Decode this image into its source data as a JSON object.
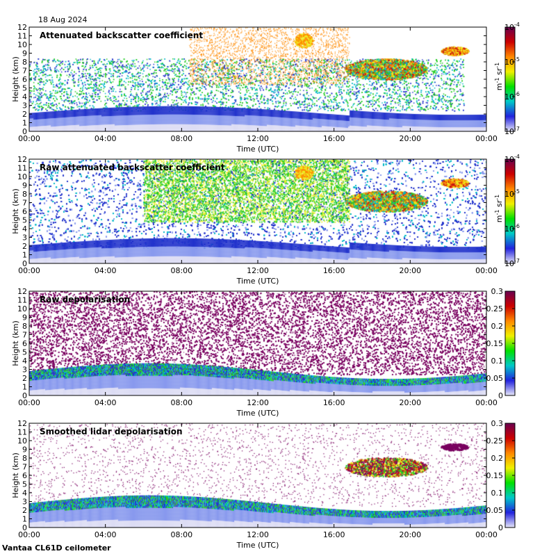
{
  "date": "18 Aug 2024",
  "footer": "Vantaa CL61D ceilometer",
  "chart_data": [
    {
      "type": "heatmap",
      "title": "Attenuated backscatter coefficient",
      "xlabel": "Time (UTC)",
      "ylabel": "Height (km)",
      "x_ticks": [
        "00:00",
        "04:00",
        "08:00",
        "12:00",
        "16:00",
        "20:00",
        "00:00"
      ],
      "y_ticks": [
        "0",
        "1",
        "2",
        "3",
        "4",
        "5",
        "6",
        "7",
        "8",
        "9",
        "10",
        "11",
        "12"
      ],
      "xlim": [
        "00:00",
        "24:00"
      ],
      "ylim": [
        0,
        12
      ],
      "colorbar": {
        "scale": "log",
        "range": [
          1e-07,
          0.0001
        ],
        "tick_bases": [
          "10",
          "10",
          "10",
          "10"
        ],
        "tick_exponents": [
          "-7",
          "-6",
          "-5",
          "-4"
        ],
        "unit_parts": [
          "m",
          "-1",
          " sr",
          "-1"
        ],
        "palette": [
          "#e8e8f8",
          "#2222dd",
          "#00c8c8",
          "#00e000",
          "#f0f000",
          "#ff8800",
          "#cc0000",
          "#6a0050"
        ]
      }
    },
    {
      "type": "heatmap",
      "title": "Raw attenuated backscatter coefficient",
      "xlabel": "Time (UTC)",
      "ylabel": "Height (km)",
      "x_ticks": [
        "00:00",
        "04:00",
        "08:00",
        "12:00",
        "16:00",
        "20:00",
        "00:00"
      ],
      "y_ticks": [
        "0",
        "1",
        "2",
        "3",
        "4",
        "5",
        "6",
        "7",
        "8",
        "9",
        "10",
        "11",
        "12"
      ],
      "xlim": [
        "00:00",
        "24:00"
      ],
      "ylim": [
        0,
        12
      ],
      "colorbar": {
        "scale": "log",
        "range": [
          1e-07,
          0.0001
        ],
        "tick_bases": [
          "10",
          "10",
          "10",
          "10"
        ],
        "tick_exponents": [
          "-7",
          "-6",
          "-5",
          "-4"
        ],
        "unit_parts": [
          "m",
          "-1",
          " sr",
          "-1"
        ],
        "palette": [
          "#e8e8f8",
          "#2222dd",
          "#00c8c8",
          "#00e000",
          "#f0f000",
          "#ff8800",
          "#cc0000",
          "#6a0050"
        ]
      }
    },
    {
      "type": "heatmap",
      "title": "Raw depolarisation",
      "xlabel": "Time (UTC)",
      "ylabel": "Height (km)",
      "x_ticks": [
        "00:00",
        "04:00",
        "08:00",
        "12:00",
        "16:00",
        "20:00",
        "00:00"
      ],
      "y_ticks": [
        "0",
        "1",
        "2",
        "3",
        "4",
        "5",
        "6",
        "7",
        "8",
        "9",
        "10",
        "11",
        "12"
      ],
      "xlim": [
        "00:00",
        "24:00"
      ],
      "ylim": [
        0,
        12
      ],
      "colorbar": {
        "scale": "linear",
        "range": [
          0,
          0.3
        ],
        "ticks": [
          "0",
          "0.05",
          "0.1",
          "0.15",
          "0.2",
          "0.25",
          "0.3"
        ],
        "palette": [
          "#e8e8f8",
          "#2222dd",
          "#00c8c8",
          "#00e000",
          "#f0f000",
          "#ff8800",
          "#cc0000",
          "#6a0050"
        ]
      }
    },
    {
      "type": "heatmap",
      "title": "Smoothed lidar depolarisation",
      "xlabel": "Time (UTC)",
      "ylabel": "Height (km)",
      "x_ticks": [
        "00:00",
        "04:00",
        "08:00",
        "12:00",
        "16:00",
        "20:00",
        "00:00"
      ],
      "y_ticks": [
        "0",
        "1",
        "2",
        "3",
        "4",
        "5",
        "6",
        "7",
        "8",
        "9",
        "10",
        "11",
        "12"
      ],
      "xlim": [
        "00:00",
        "24:00"
      ],
      "ylim": [
        0,
        12
      ],
      "colorbar": {
        "scale": "linear",
        "range": [
          0,
          0.3
        ],
        "ticks": [
          "0",
          "0.05",
          "0.1",
          "0.15",
          "0.2",
          "0.25",
          "0.3"
        ],
        "palette": [
          "#e8e8f8",
          "#2222dd",
          "#00c8c8",
          "#00e000",
          "#f0f000",
          "#ff8800",
          "#cc0000",
          "#6a0050"
        ]
      }
    }
  ]
}
